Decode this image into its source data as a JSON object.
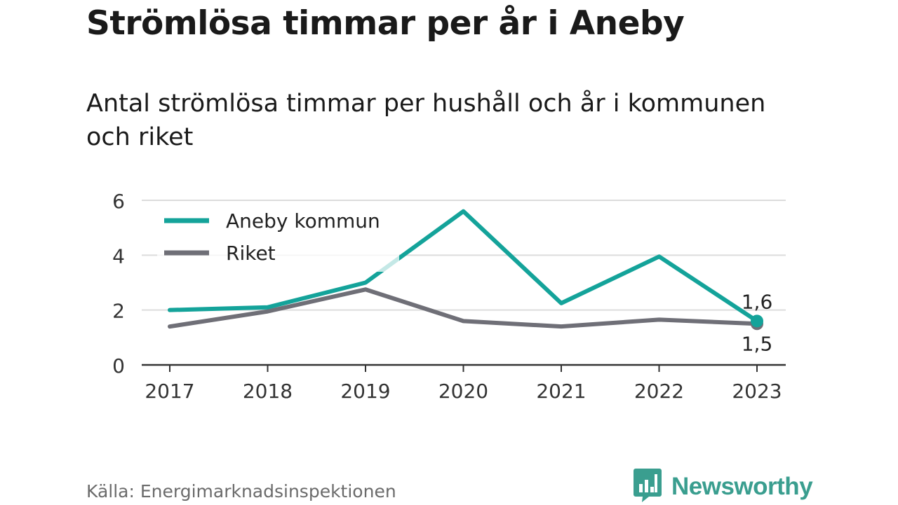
{
  "header": {
    "title": "Strömlösa timmar per år i Aneby",
    "subtitle": "Antal strömlösa timmar per hushåll och år i kommunen och riket"
  },
  "footer": {
    "source": "Källa: Energimarknadsinspektionen",
    "brand": "Newsworthy",
    "brand_icon": "bar-chart-speech-bubble-icon",
    "brand_color": "#3a9e8f"
  },
  "chart_data": {
    "type": "line",
    "x": [
      "2017",
      "2018",
      "2019",
      "2020",
      "2021",
      "2022",
      "2023"
    ],
    "ylim": [
      0,
      6
    ],
    "yticks": [
      "0",
      "2",
      "4",
      "6"
    ],
    "grid": true,
    "legend_position": "top-left",
    "series": [
      {
        "name": "Aneby kommun",
        "color": "#14a39a",
        "values": [
          2.0,
          2.1,
          3.0,
          5.6,
          2.25,
          3.95,
          1.6
        ],
        "end_label": "1,6"
      },
      {
        "name": "Riket",
        "color": "#6f6f77",
        "values": [
          1.4,
          1.95,
          2.75,
          1.6,
          1.4,
          1.65,
          1.5
        ],
        "end_label": "1,5"
      }
    ]
  }
}
